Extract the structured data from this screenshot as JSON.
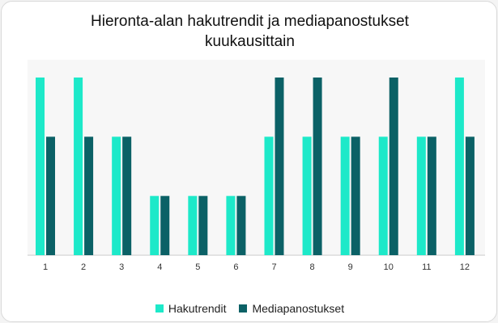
{
  "title_lines": [
    "Hieronta-alan hakutrendit ja mediapanostukset",
    "kuukausittain"
  ],
  "colors": {
    "hakutrendit": "#1de9c9",
    "mediapanostukset": "#0b6166"
  },
  "legend": {
    "hakutrendit": "Hakutrendit",
    "mediapanostukset": "Mediapanostukset"
  },
  "chart_data": {
    "type": "bar",
    "title": "Hieronta-alan hakutrendit ja mediapanostukset kuukausittain",
    "categories": [
      "1",
      "2",
      "3",
      "4",
      "5",
      "6",
      "7",
      "8",
      "9",
      "10",
      "11",
      "12"
    ],
    "series": [
      {
        "name": "Hakutrendit",
        "values": [
          3,
          3,
          2,
          1,
          1,
          1,
          2,
          2,
          2,
          2,
          2,
          3
        ]
      },
      {
        "name": "Mediapanostukset",
        "values": [
          2,
          2,
          2,
          1,
          1,
          1,
          3,
          3,
          2,
          3,
          2,
          2
        ]
      }
    ],
    "ylim": [
      0,
      3.3
    ],
    "grid": false,
    "legend_position": "bottom"
  }
}
